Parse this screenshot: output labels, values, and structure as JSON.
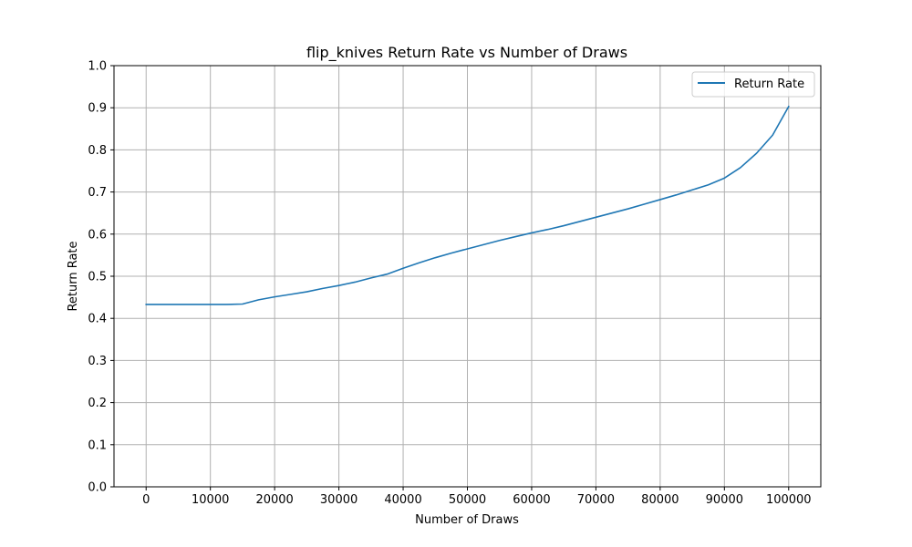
{
  "chart_data": {
    "type": "line",
    "title": "flip_knives Return Rate vs Number of Draws",
    "xlabel": "Number of Draws",
    "ylabel": "Return Rate",
    "xlim": [
      -5000,
      105000
    ],
    "ylim": [
      0.0,
      1.0
    ],
    "grid": true,
    "legend_position": "top-right",
    "xticks": [
      0,
      10000,
      20000,
      30000,
      40000,
      50000,
      60000,
      70000,
      80000,
      90000,
      100000
    ],
    "xtick_labels": [
      "0",
      "10000",
      "20000",
      "30000",
      "40000",
      "50000",
      "60000",
      "70000",
      "80000",
      "90000",
      "100000"
    ],
    "yticks": [
      0.0,
      0.1,
      0.2,
      0.3,
      0.4,
      0.5,
      0.6,
      0.7,
      0.8,
      0.9,
      1.0
    ],
    "ytick_labels": [
      "0.0",
      "0.1",
      "0.2",
      "0.3",
      "0.4",
      "0.5",
      "0.6",
      "0.7",
      "0.8",
      "0.9",
      "1.0"
    ],
    "series": [
      {
        "name": "Return Rate",
        "color": "#1f77b4",
        "x": [
          0,
          2500,
          5000,
          7500,
          10000,
          12500,
          15000,
          17500,
          20000,
          22500,
          25000,
          27500,
          30000,
          32500,
          35000,
          37500,
          40000,
          42500,
          45000,
          47500,
          50000,
          52500,
          55000,
          57500,
          60000,
          62500,
          65000,
          67500,
          70000,
          72500,
          75000,
          77500,
          80000,
          82500,
          85000,
          87500,
          90000,
          92500,
          95000,
          97500,
          100000
        ],
        "y": [
          0.433,
          0.433,
          0.433,
          0.433,
          0.433,
          0.433,
          0.434,
          0.444,
          0.451,
          0.457,
          0.463,
          0.471,
          0.478,
          0.486,
          0.496,
          0.505,
          0.519,
          0.532,
          0.544,
          0.555,
          0.565,
          0.575,
          0.585,
          0.594,
          0.603,
          0.611,
          0.62,
          0.63,
          0.64,
          0.65,
          0.66,
          0.671,
          0.682,
          0.693,
          0.705,
          0.717,
          0.733,
          0.758,
          0.792,
          0.835,
          0.903
        ]
      }
    ]
  }
}
